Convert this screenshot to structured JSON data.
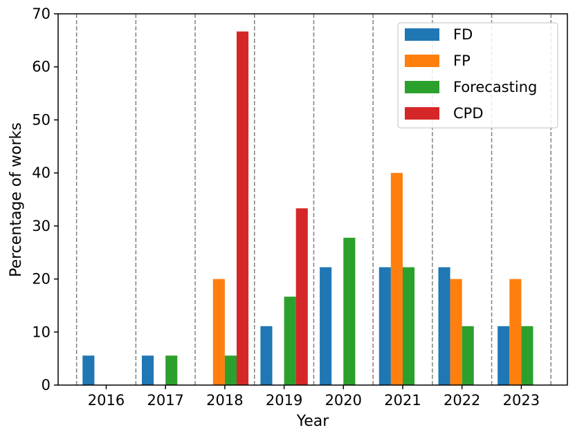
{
  "chart_data": {
    "type": "bar",
    "categories": [
      "2016",
      "2017",
      "2018",
      "2019",
      "2020",
      "2021",
      "2022",
      "2023"
    ],
    "series": [
      {
        "name": "FD",
        "color": "#1f77b4",
        "values": [
          5.56,
          5.56,
          0,
          11.11,
          22.22,
          22.22,
          22.22,
          11.11
        ]
      },
      {
        "name": "FP",
        "color": "#ff7f0e",
        "values": [
          0,
          0,
          20,
          0,
          0,
          40,
          20,
          20
        ]
      },
      {
        "name": "Forecasting",
        "color": "#2ca02c",
        "values": [
          0,
          5.56,
          5.56,
          16.67,
          27.78,
          22.22,
          11.11,
          11.11
        ]
      },
      {
        "name": "CPD",
        "color": "#d62728",
        "values": [
          0,
          0,
          66.67,
          33.33,
          0,
          0,
          0,
          0
        ]
      }
    ],
    "xlabel": "Year",
    "ylabel": "Percentage of works",
    "ylim": [
      0,
      70
    ],
    "yticks": [
      0,
      10,
      20,
      30,
      40,
      50,
      60,
      70
    ],
    "grid": "vertical dashed separators between years",
    "legend_position": "top-right"
  }
}
